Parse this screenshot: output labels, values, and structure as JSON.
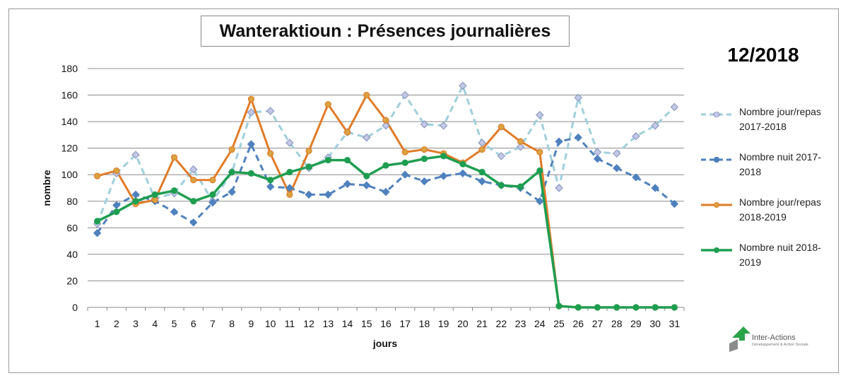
{
  "chart_data": {
    "type": "line",
    "title": "Wanteraktioun : Présences journalières",
    "period_label": "12/2018",
    "xlabel": "jours",
    "ylabel": "nombre",
    "ylim": [
      0,
      180
    ],
    "y_ticks": [
      0,
      20,
      40,
      60,
      80,
      100,
      120,
      140,
      160,
      180
    ],
    "grid": true,
    "legend_position": "right",
    "x": [
      1,
      2,
      3,
      4,
      5,
      6,
      7,
      8,
      9,
      10,
      11,
      12,
      13,
      14,
      15,
      16,
      17,
      18,
      19,
      20,
      21,
      22,
      23,
      24,
      25,
      26,
      27,
      28,
      29,
      30,
      31
    ],
    "series": [
      {
        "name": "Nombre jour/repas 2017-2018",
        "color": "#9fcfdc",
        "marker": "diamond",
        "marker_fill": "#c3c8e6",
        "marker_stroke": "#8090b8",
        "dashed": true,
        "line_width": 3,
        "values": [
          63,
          101,
          115,
          82,
          86,
          104,
          80,
          102,
          147,
          148,
          124,
          105,
          113,
          132,
          128,
          137,
          160,
          138,
          137,
          167,
          124,
          114,
          121,
          145,
          90,
          158,
          117,
          116,
          129,
          137,
          151
        ]
      },
      {
        "name": "Nombre nuit 2017-2018",
        "color": "#4f81bd",
        "marker": "diamond",
        "marker_fill": "#4f81bd",
        "marker_stroke": "#4f81bd",
        "dashed": true,
        "line_width": 3,
        "values": [
          56,
          77,
          85,
          80,
          72,
          64,
          79,
          87,
          123,
          91,
          90,
          85,
          85,
          93,
          92,
          87,
          100,
          95,
          99,
          101,
          95,
          92,
          90,
          80,
          125,
          128,
          112,
          105,
          98,
          90,
          78
        ]
      },
      {
        "name": "Nombre jour/repas 2018-2019",
        "color": "#e07b28",
        "marker": "circle",
        "marker_fill": "#d9a441",
        "marker_stroke": "#e07b28",
        "dashed": false,
        "line_width": 3,
        "values": [
          99,
          103,
          78,
          81,
          113,
          96,
          96,
          119,
          157,
          116,
          85,
          118,
          153,
          132,
          160,
          141,
          117,
          119,
          116,
          109,
          119,
          136,
          125,
          117,
          1,
          0,
          0,
          0,
          0,
          0,
          0
        ]
      },
      {
        "name": "Nombre nuit 2018-2019",
        "color": "#1e9e50",
        "marker": "circle",
        "marker_fill": "#1e9e50",
        "marker_stroke": "#1e9e50",
        "dashed": false,
        "line_width": 3.5,
        "values": [
          65,
          72,
          80,
          85,
          88,
          80,
          85,
          102,
          101,
          96,
          102,
          106,
          111,
          111,
          99,
          107,
          109,
          112,
          114,
          108,
          102,
          92,
          91,
          103,
          1,
          0,
          0,
          0,
          0,
          0,
          0
        ]
      }
    ]
  },
  "legend": {
    "items": [
      {
        "line1": "Nombre jour/repas",
        "line2": "2017-2018"
      },
      {
        "line1": "Nombre nuit 2017-",
        "line2": "2018"
      },
      {
        "line1": "Nombre jour/repas",
        "line2": "2018-2019"
      },
      {
        "line1": "Nombre nuit 2018-",
        "line2": "2019"
      }
    ]
  },
  "logo": {
    "name": "Inter-Actions",
    "tagline": "Développement & Action Sociale",
    "colors": {
      "green": "#2aa44a",
      "grey": "#8c8c8c"
    }
  }
}
